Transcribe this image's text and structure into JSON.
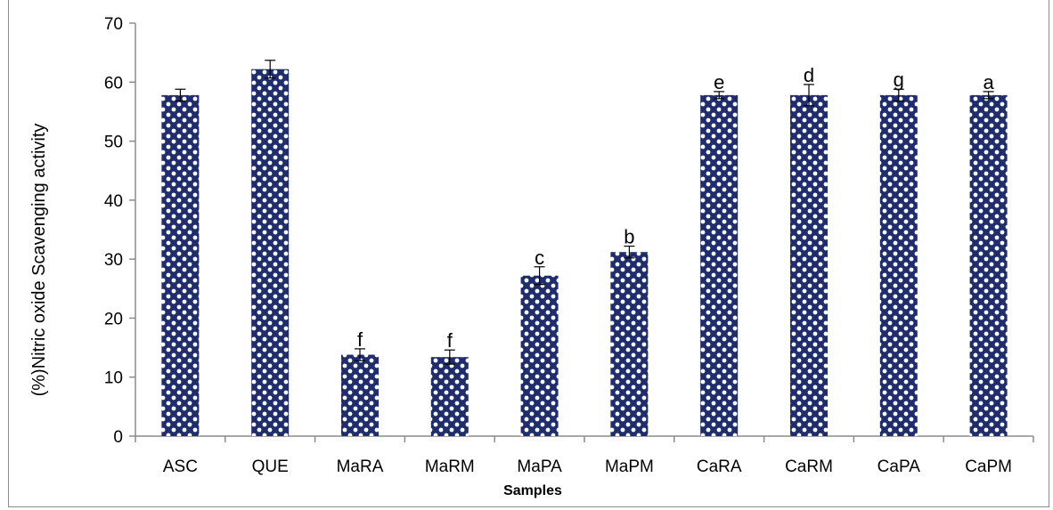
{
  "chart_data": {
    "type": "bar",
    "title": "",
    "xlabel": "Samples",
    "ylabel": "(%)Nitric oxide Scavenging activity",
    "ylim": [
      0,
      70
    ],
    "yticks": [
      0,
      10,
      20,
      30,
      40,
      50,
      60,
      70
    ],
    "grid": false,
    "legend": "none",
    "bar_color": "#1f2d6e",
    "categories": [
      "ASC",
      "QUE",
      "MaRA",
      "MaRM",
      "MaPA",
      "MaPM",
      "CaRA",
      "CaRM",
      "CaPA",
      "CaPM"
    ],
    "values": [
      57.8,
      62.2,
      13.8,
      13.4,
      27.2,
      31.2,
      57.8,
      57.8,
      57.8,
      57.8
    ],
    "errors": [
      1.0,
      1.5,
      1.0,
      1.2,
      1.5,
      1.0,
      0.6,
      1.8,
      1.0,
      0.6
    ],
    "significance_letters": [
      "",
      "",
      "f",
      "f",
      "c",
      "b",
      "e",
      "d",
      "g",
      "a"
    ]
  }
}
